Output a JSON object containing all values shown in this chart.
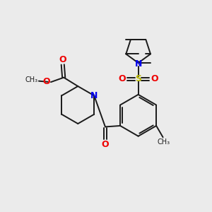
{
  "background_color": "#ebebeb",
  "bond_color": "#1a1a1a",
  "nitrogen_color": "#0000ee",
  "oxygen_color": "#ee0000",
  "sulfur_color": "#bbbb00",
  "figsize": [
    3.0,
    3.0
  ],
  "dpi": 100,
  "xlim": [
    0,
    10
  ],
  "ylim": [
    0,
    10
  ]
}
